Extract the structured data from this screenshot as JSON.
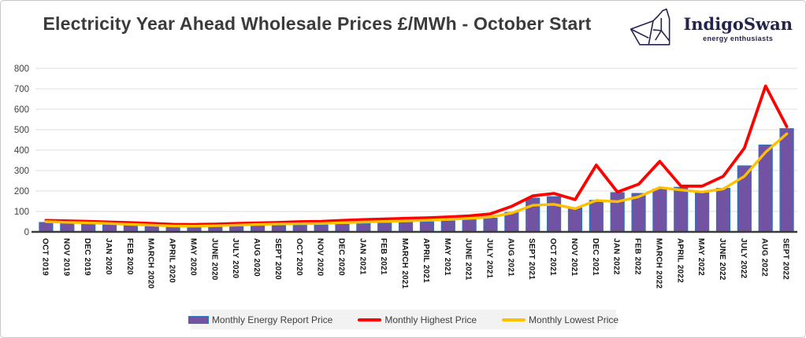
{
  "title": "Electricity Year Ahead Wholesale Prices £/MWh - October Start",
  "logo": {
    "name": "IndigoSwan",
    "tagline": "energy enthusiasts",
    "color": "#23234e",
    "icon": "origami-swan-icon"
  },
  "chart_data": {
    "type": "bar",
    "title": "Electricity Year Ahead Wholesale Prices £/MWh - October Start",
    "xlabel": "",
    "ylabel": "",
    "ylim": [
      0,
      800
    ],
    "y_ticks": [
      0,
      100,
      200,
      300,
      400,
      500,
      600,
      700,
      800
    ],
    "grid": true,
    "grid_color": "#dcdcdc",
    "axis_color": "#3b3b3b",
    "legend_position": "bottom",
    "categories": [
      "OCT 2019",
      "NOV 2019",
      "DEC 2019",
      "JAN 2020",
      "FEB 2020",
      "MARCH 2020",
      "APRIL 2020",
      "MAY 2020",
      "JUNE 2020",
      "JULY 2020",
      "AUG 2020",
      "SEPT 2020",
      "OCT 2020",
      "NOV 2020",
      "DEC 2020",
      "JAN 2021",
      "FEB 2021",
      "MARCH 2021",
      "APRIL 2021",
      "MAY 2021",
      "JUNE 2021",
      "JULY 2021",
      "AUG 2021",
      "SEPT 2021",
      "OCT 2021",
      "NOV 2021",
      "DEC 2021",
      "JAN 2022",
      "FEB 2022",
      "MARCH 2022",
      "APRIL 2022",
      "MAY 2022",
      "JUNE 2022",
      "JULY 2022",
      "AUG 2022",
      "SEPT 2022"
    ],
    "series": [
      {
        "name": "Monthly Energy Report Price",
        "type": "bar",
        "color": "#7252a3",
        "border_color": "#2e75b6",
        "values": [
          46,
          43,
          40,
          37,
          33,
          30,
          27,
          26,
          27,
          29,
          31,
          32,
          33,
          34,
          37,
          40,
          43,
          46,
          49,
          53,
          59,
          67,
          95,
          165,
          172,
          118,
          154,
          192,
          188,
          209,
          218,
          191,
          213,
          323,
          425,
          505
        ]
      },
      {
        "name": "Monthly Highest Price",
        "type": "line",
        "color": "#ff0000",
        "values": [
          56,
          54,
          51,
          48,
          45,
          41,
          37,
          36,
          38,
          41,
          44,
          46,
          50,
          51,
          56,
          60,
          63,
          66,
          69,
          73,
          78,
          88,
          125,
          176,
          188,
          158,
          327,
          195,
          233,
          345,
          224,
          224,
          272,
          410,
          714,
          515
        ]
      },
      {
        "name": "Monthly Lowest Price",
        "type": "line",
        "color": "#ffc000",
        "values": [
          50,
          47,
          44,
          41,
          37,
          33,
          29,
          28,
          30,
          33,
          36,
          39,
          40,
          41,
          45,
          48,
          51,
          54,
          57,
          61,
          66,
          73,
          92,
          130,
          135,
          114,
          154,
          148,
          172,
          217,
          205,
          195,
          210,
          272,
          390,
          480
        ]
      }
    ]
  }
}
